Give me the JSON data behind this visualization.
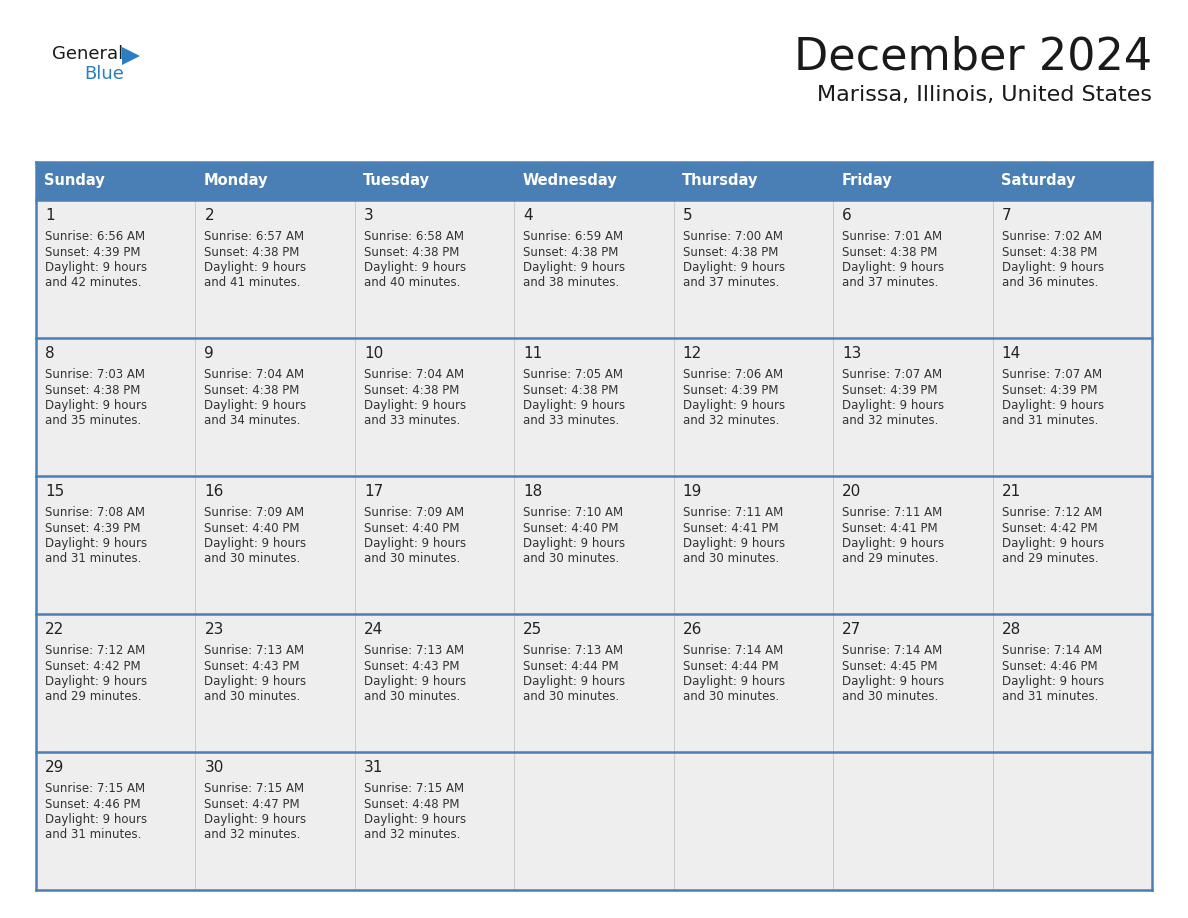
{
  "title": "December 2024",
  "subtitle": "Marissa, Illinois, United States",
  "days_of_week": [
    "Sunday",
    "Monday",
    "Tuesday",
    "Wednesday",
    "Thursday",
    "Friday",
    "Saturday"
  ],
  "header_bg": "#4A7FB5",
  "header_text_color": "#FFFFFF",
  "cell_bg": "#EEEEEE",
  "last_row_bg": "#E8E8E8",
  "border_color": "#4A7FB5",
  "row_separator_color": "#4A7FB5",
  "title_color": "#1a1a1a",
  "subtitle_color": "#1a1a1a",
  "cell_text_color": "#333333",
  "day_num_color": "#222222",
  "logo_general_color": "#1a1a1a",
  "logo_blue_color": "#2B7EC1",
  "calendar_data": [
    [
      {
        "day": 1,
        "sunrise": "6:56 AM",
        "sunset": "4:39 PM",
        "daylight_hours": 9,
        "daylight_minutes": 42
      },
      {
        "day": 2,
        "sunrise": "6:57 AM",
        "sunset": "4:38 PM",
        "daylight_hours": 9,
        "daylight_minutes": 41
      },
      {
        "day": 3,
        "sunrise": "6:58 AM",
        "sunset": "4:38 PM",
        "daylight_hours": 9,
        "daylight_minutes": 40
      },
      {
        "day": 4,
        "sunrise": "6:59 AM",
        "sunset": "4:38 PM",
        "daylight_hours": 9,
        "daylight_minutes": 38
      },
      {
        "day": 5,
        "sunrise": "7:00 AM",
        "sunset": "4:38 PM",
        "daylight_hours": 9,
        "daylight_minutes": 37
      },
      {
        "day": 6,
        "sunrise": "7:01 AM",
        "sunset": "4:38 PM",
        "daylight_hours": 9,
        "daylight_minutes": 37
      },
      {
        "day": 7,
        "sunrise": "7:02 AM",
        "sunset": "4:38 PM",
        "daylight_hours": 9,
        "daylight_minutes": 36
      }
    ],
    [
      {
        "day": 8,
        "sunrise": "7:03 AM",
        "sunset": "4:38 PM",
        "daylight_hours": 9,
        "daylight_minutes": 35
      },
      {
        "day": 9,
        "sunrise": "7:04 AM",
        "sunset": "4:38 PM",
        "daylight_hours": 9,
        "daylight_minutes": 34
      },
      {
        "day": 10,
        "sunrise": "7:04 AM",
        "sunset": "4:38 PM",
        "daylight_hours": 9,
        "daylight_minutes": 33
      },
      {
        "day": 11,
        "sunrise": "7:05 AM",
        "sunset": "4:38 PM",
        "daylight_hours": 9,
        "daylight_minutes": 33
      },
      {
        "day": 12,
        "sunrise": "7:06 AM",
        "sunset": "4:39 PM",
        "daylight_hours": 9,
        "daylight_minutes": 32
      },
      {
        "day": 13,
        "sunrise": "7:07 AM",
        "sunset": "4:39 PM",
        "daylight_hours": 9,
        "daylight_minutes": 32
      },
      {
        "day": 14,
        "sunrise": "7:07 AM",
        "sunset": "4:39 PM",
        "daylight_hours": 9,
        "daylight_minutes": 31
      }
    ],
    [
      {
        "day": 15,
        "sunrise": "7:08 AM",
        "sunset": "4:39 PM",
        "daylight_hours": 9,
        "daylight_minutes": 31
      },
      {
        "day": 16,
        "sunrise": "7:09 AM",
        "sunset": "4:40 PM",
        "daylight_hours": 9,
        "daylight_minutes": 30
      },
      {
        "day": 17,
        "sunrise": "7:09 AM",
        "sunset": "4:40 PM",
        "daylight_hours": 9,
        "daylight_minutes": 30
      },
      {
        "day": 18,
        "sunrise": "7:10 AM",
        "sunset": "4:40 PM",
        "daylight_hours": 9,
        "daylight_minutes": 30
      },
      {
        "day": 19,
        "sunrise": "7:11 AM",
        "sunset": "4:41 PM",
        "daylight_hours": 9,
        "daylight_minutes": 30
      },
      {
        "day": 20,
        "sunrise": "7:11 AM",
        "sunset": "4:41 PM",
        "daylight_hours": 9,
        "daylight_minutes": 29
      },
      {
        "day": 21,
        "sunrise": "7:12 AM",
        "sunset": "4:42 PM",
        "daylight_hours": 9,
        "daylight_minutes": 29
      }
    ],
    [
      {
        "day": 22,
        "sunrise": "7:12 AM",
        "sunset": "4:42 PM",
        "daylight_hours": 9,
        "daylight_minutes": 29
      },
      {
        "day": 23,
        "sunrise": "7:13 AM",
        "sunset": "4:43 PM",
        "daylight_hours": 9,
        "daylight_minutes": 30
      },
      {
        "day": 24,
        "sunrise": "7:13 AM",
        "sunset": "4:43 PM",
        "daylight_hours": 9,
        "daylight_minutes": 30
      },
      {
        "day": 25,
        "sunrise": "7:13 AM",
        "sunset": "4:44 PM",
        "daylight_hours": 9,
        "daylight_minutes": 30
      },
      {
        "day": 26,
        "sunrise": "7:14 AM",
        "sunset": "4:44 PM",
        "daylight_hours": 9,
        "daylight_minutes": 30
      },
      {
        "day": 27,
        "sunrise": "7:14 AM",
        "sunset": "4:45 PM",
        "daylight_hours": 9,
        "daylight_minutes": 30
      },
      {
        "day": 28,
        "sunrise": "7:14 AM",
        "sunset": "4:46 PM",
        "daylight_hours": 9,
        "daylight_minutes": 31
      }
    ],
    [
      {
        "day": 29,
        "sunrise": "7:15 AM",
        "sunset": "4:46 PM",
        "daylight_hours": 9,
        "daylight_minutes": 31
      },
      {
        "day": 30,
        "sunrise": "7:15 AM",
        "sunset": "4:47 PM",
        "daylight_hours": 9,
        "daylight_minutes": 32
      },
      {
        "day": 31,
        "sunrise": "7:15 AM",
        "sunset": "4:48 PM",
        "daylight_hours": 9,
        "daylight_minutes": 32
      },
      null,
      null,
      null,
      null
    ]
  ]
}
